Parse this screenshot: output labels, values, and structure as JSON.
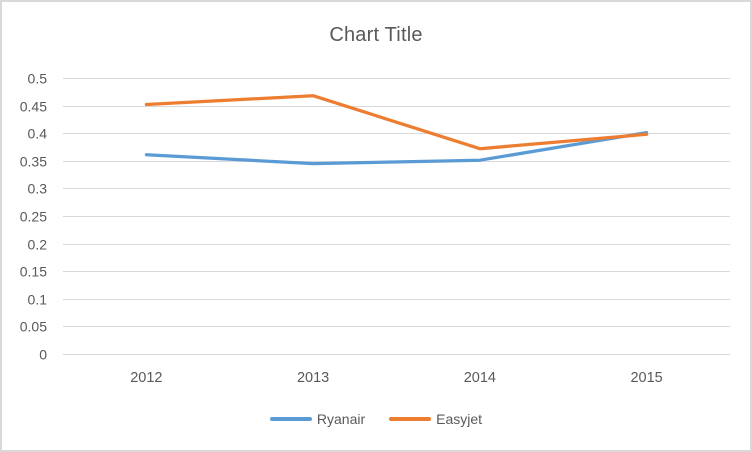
{
  "frame": {
    "background": "#FFFFFF",
    "border_color": "#D9D9D9"
  },
  "chart_data": {
    "type": "line",
    "title": "Chart Title",
    "categories": [
      "2012",
      "2013",
      "2014",
      "2015"
    ],
    "series": [
      {
        "name": "Ryanair",
        "color": "#5B9BD5",
        "values": [
          0.361,
          0.345,
          0.351,
          0.401
        ]
      },
      {
        "name": "Easyjet",
        "color": "#ED7D31",
        "values": [
          0.452,
          0.468,
          0.372,
          0.398
        ]
      }
    ],
    "xlabel": "",
    "ylabel": "",
    "ylim": [
      0,
      0.5
    ],
    "ytick_step": 0.05,
    "ytick_labels": [
      "0",
      "0.05",
      "0.1",
      "0.15",
      "0.2",
      "0.25",
      "0.3",
      "0.35",
      "0.4",
      "0.45",
      "0.5"
    ],
    "grid": true,
    "grid_color": "#D9D9D9",
    "text_color": "#595959",
    "legend_position": "bottom"
  }
}
